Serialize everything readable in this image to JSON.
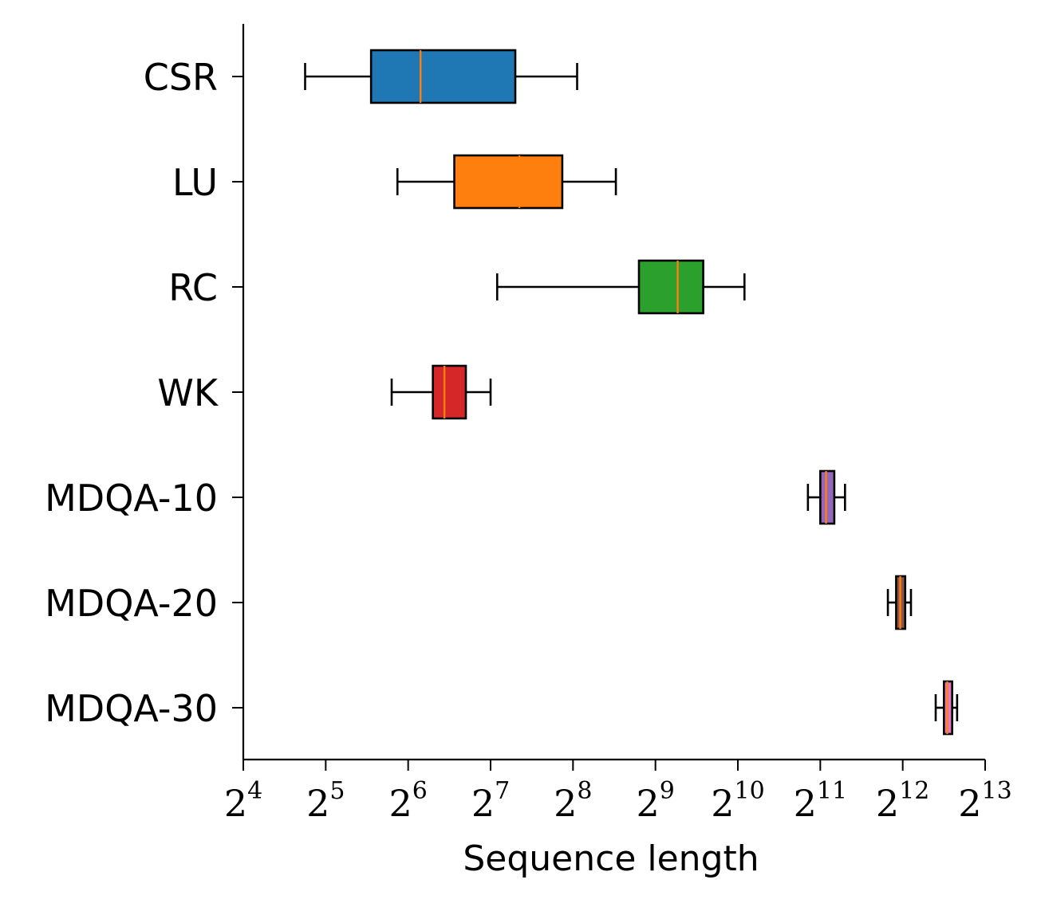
{
  "chart_data": {
    "type": "boxplot",
    "orientation": "horizontal",
    "xscale": "log2",
    "xlim_exponents": [
      4,
      13
    ],
    "xlabel": "Sequence length",
    "ylabel": "",
    "tick_base": "2",
    "tick_exponents": [
      "4",
      "5",
      "6",
      "7",
      "8",
      "9",
      "10",
      "11",
      "12",
      "13"
    ],
    "categories": [
      "CSR",
      "LU",
      "RC",
      "WK",
      "MDQA-10",
      "MDQA-20",
      "MDQA-30"
    ],
    "boxes": [
      {
        "name": "CSR",
        "whisker_low_exp": 4.75,
        "q1_exp": 5.55,
        "median_exp": 6.15,
        "q3_exp": 7.3,
        "whisker_high_exp": 8.05,
        "color": "#1f77b4"
      },
      {
        "name": "LU",
        "whisker_low_exp": 5.87,
        "q1_exp": 6.56,
        "median_exp": 7.35,
        "q3_exp": 7.87,
        "whisker_high_exp": 8.52,
        "color": "#ff7f0e"
      },
      {
        "name": "RC",
        "whisker_low_exp": 7.08,
        "q1_exp": 8.8,
        "median_exp": 9.27,
        "q3_exp": 9.58,
        "whisker_high_exp": 10.08,
        "color": "#2ca02c"
      },
      {
        "name": "WK",
        "whisker_low_exp": 5.8,
        "q1_exp": 6.3,
        "median_exp": 6.44,
        "q3_exp": 6.7,
        "whisker_high_exp": 7.0,
        "color": "#d62728"
      },
      {
        "name": "MDQA-10",
        "whisker_low_exp": 10.85,
        "q1_exp": 11.0,
        "median_exp": 11.07,
        "q3_exp": 11.17,
        "whisker_high_exp": 11.3,
        "color": "#9467bd"
      },
      {
        "name": "MDQA-20",
        "whisker_low_exp": 11.82,
        "q1_exp": 11.92,
        "median_exp": 11.97,
        "q3_exp": 12.03,
        "whisker_high_exp": 12.1,
        "color": "#8c564b"
      },
      {
        "name": "MDQA-30",
        "whisker_low_exp": 12.4,
        "q1_exp": 12.5,
        "median_exp": 12.54,
        "q3_exp": 12.6,
        "whisker_high_exp": 12.66,
        "color": "#e377c2"
      }
    ],
    "median_color": "#ff7f0e",
    "edge_color": "#000000"
  }
}
